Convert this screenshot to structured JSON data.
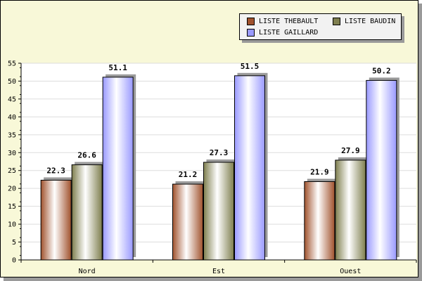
{
  "chart_data": {
    "type": "bar",
    "categories": [
      "Nord",
      "Est",
      "Ouest"
    ],
    "series": [
      {
        "name": "LISTE THEBAULT",
        "values": [
          22.3,
          21.2,
          21.9
        ],
        "color": "#a0522d"
      },
      {
        "name": "LISTE BAUDIN",
        "values": [
          26.6,
          27.3,
          27.9
        ],
        "color": "#7f7f4f"
      },
      {
        "name": "LISTE GAILLARD",
        "values": [
          51.1,
          51.5,
          50.2
        ],
        "color": "#9999ff"
      }
    ],
    "title": "",
    "xlabel": "",
    "ylabel": "",
    "ylim": [
      0,
      55
    ],
    "yticks": [
      0,
      5,
      10,
      15,
      20,
      25,
      30,
      35,
      40,
      45,
      50,
      55
    ],
    "grid": true,
    "legend_position": "top-right",
    "colors": {
      "background": "#f8f8d8",
      "plot": "#ffffff",
      "gridline": "#dddddd",
      "shadow": "#9a9a9a"
    }
  }
}
